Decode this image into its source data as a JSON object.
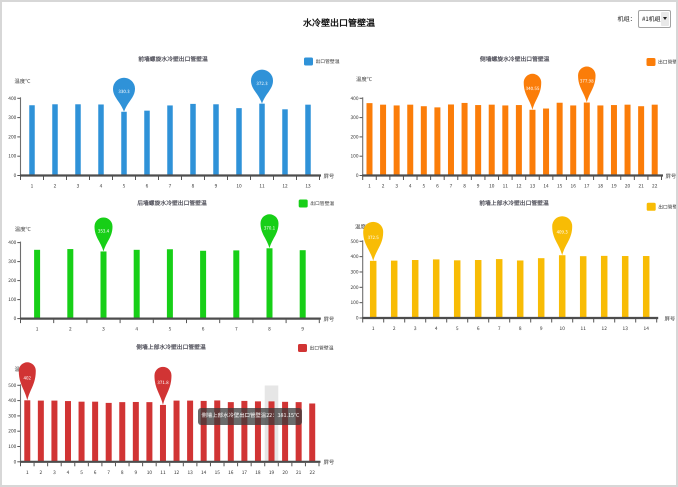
{
  "page": {
    "title": "水冷壁出口管壁温"
  },
  "unit_selector": {
    "label": "机组：",
    "value": "#1机组"
  },
  "chart_data": [
    {
      "id": "front-spiral-wall",
      "type": "bar",
      "title": "前墙螺旋水冷壁出口管壁温",
      "legend": "出口管壁温",
      "color": "#2f92d8",
      "xlabel": "屏号",
      "ylabel": "温度℃",
      "ylim": [
        0,
        400
      ],
      "ytick_step": 100,
      "categories": [
        1,
        2,
        3,
        4,
        5,
        6,
        7,
        8,
        9,
        10,
        11,
        12,
        13
      ],
      "values": [
        364,
        369,
        369,
        368,
        330.3,
        336,
        363,
        371,
        369,
        349,
        372.3,
        343,
        367
      ],
      "markers": [
        {
          "kind": "min",
          "category": 5,
          "value": 330.3,
          "label": "330.3"
        },
        {
          "kind": "max",
          "category": 11,
          "value": 372.3,
          "label": "372.3"
        }
      ]
    },
    {
      "id": "side-spiral-wall",
      "type": "bar",
      "title": "侧墙螺旋水冷壁出口管壁温",
      "legend": "出口管壁温",
      "color": "#fb7d09",
      "xlabel": "屏号",
      "ylabel": "温度℃",
      "ylim": [
        0,
        400
      ],
      "ytick_step": 100,
      "categories": [
        1,
        2,
        3,
        4,
        5,
        6,
        7,
        8,
        9,
        10,
        11,
        12,
        13,
        14,
        15,
        16,
        17,
        18,
        19,
        20,
        21,
        22
      ],
      "values": [
        375,
        367,
        363,
        367,
        359,
        353,
        368,
        376,
        365,
        367,
        363,
        365,
        340.55,
        347,
        377,
        363,
        377.98,
        363,
        365,
        367,
        359,
        367
      ],
      "markers": [
        {
          "kind": "min",
          "category": 13,
          "value": 340.55,
          "label": "340.55"
        },
        {
          "kind": "max",
          "category": 17,
          "value": 377.98,
          "label": "377.98"
        }
      ]
    },
    {
      "id": "rear-spiral-wall",
      "type": "bar",
      "title": "后墙螺旋水冷壁出口管壁温",
      "legend": "出口管壁温",
      "color": "#17cf17",
      "xlabel": "屏号",
      "ylabel": "温度℃",
      "ylim": [
        0,
        400
      ],
      "ytick_step": 100,
      "categories": [
        1,
        2,
        3,
        4,
        5,
        6,
        7,
        8,
        9
      ],
      "values": [
        362,
        366,
        353.4,
        362,
        365,
        357,
        359,
        370.1,
        360
      ],
      "markers": [
        {
          "kind": "min",
          "category": 3,
          "value": 353.4,
          "label": "353.4"
        },
        {
          "kind": "max",
          "category": 8,
          "value": 370.1,
          "label": "370.1"
        }
      ]
    },
    {
      "id": "front-upper-wall",
      "type": "bar",
      "title": "前墙上部水冷壁出口管壁温",
      "legend": "出口管壁温",
      "color": "#f8bc05",
      "xlabel": "屏号",
      "ylabel": "温度℃",
      "ylim": [
        0,
        500
      ],
      "ytick_step": 100,
      "categories": [
        1,
        2,
        3,
        4,
        5,
        6,
        7,
        8,
        9,
        10,
        11,
        12,
        13,
        14
      ],
      "values": [
        372.5,
        374,
        378,
        382,
        376,
        378,
        384,
        375,
        390,
        409.3,
        403,
        405,
        404,
        404
      ],
      "markers": [
        {
          "kind": "min",
          "category": 1,
          "value": 372.5,
          "label": "372.5"
        },
        {
          "kind": "max",
          "category": 10,
          "value": 409.3,
          "label": "409.3"
        }
      ]
    },
    {
      "id": "side-upper-wall",
      "type": "bar",
      "title": "侧墙上部水冷壁出口管壁温",
      "legend": "出口管壁温",
      "color": "#d13434",
      "xlabel": "屏号",
      "ylabel": "温度℃",
      "ylim": [
        0,
        500
      ],
      "ytick_step": 100,
      "categories": [
        1,
        2,
        3,
        4,
        5,
        6,
        7,
        8,
        9,
        10,
        11,
        12,
        13,
        14,
        15,
        16,
        17,
        18,
        19,
        20,
        21,
        22
      ],
      "values": [
        402,
        400,
        400,
        397,
        393,
        393,
        385,
        390,
        391,
        390,
        371.8,
        400,
        400,
        398,
        401,
        390,
        398,
        395,
        395,
        392,
        390,
        381.15
      ],
      "markers": [
        {
          "kind": "max",
          "category": 1,
          "value": 402,
          "label": "402"
        },
        {
          "kind": "min",
          "category": 11,
          "value": 371.8,
          "label": "371.8"
        }
      ],
      "hover": {
        "category": 19,
        "tooltip": "侧墙上部水冷壁出口管壁温22：381.15℃"
      }
    }
  ]
}
